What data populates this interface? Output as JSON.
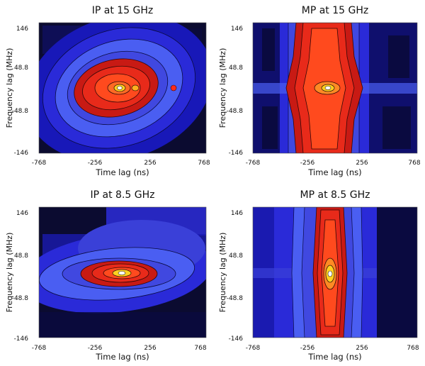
{
  "chart_data": [
    {
      "type": "heatmap",
      "title": "IP at 15 GHz",
      "xlabel": "Time lag (ns)",
      "ylabel": "Frequency lag (MHz)",
      "xlim": [
        -768,
        768
      ],
      "ylim": [
        -146,
        146
      ],
      "xticks": [
        "-768",
        "-256",
        "256",
        "768"
      ],
      "yticks": [
        "146",
        "48.8",
        "-48.8",
        "-146"
      ],
      "colormap": [
        "#0a0a2e",
        "#1a1ad0",
        "#4a5ef2",
        "#d61a10",
        "#ff4a1a",
        "#ffd020",
        "#ffffff"
      ],
      "peak": {
        "x": 0,
        "y": 0
      },
      "shape": "elliptical blob, tilted, broad in time lag"
    },
    {
      "type": "heatmap",
      "title": "MP at 15 GHz",
      "xlabel": "Time lag (ns)",
      "ylabel": "Frequency lag (MHz)",
      "xlim": [
        -768,
        768
      ],
      "ylim": [
        -146,
        146
      ],
      "xticks": [
        "-768",
        "-256",
        "256",
        "768"
      ],
      "yticks": [
        "146",
        "48.8",
        "-48.8",
        "-146"
      ],
      "colormap": [
        "#0a0a2e",
        "#1a1ad0",
        "#4a5ef2",
        "#d61a10",
        "#ff4a1a",
        "#ffd020",
        "#ffffff"
      ],
      "peak": {
        "x": 0,
        "y": 0
      },
      "shape": "vertical band narrow in time lag, extended in frequency lag"
    },
    {
      "type": "heatmap",
      "title": "IP at 8.5 GHz",
      "xlabel": "Time lag (ns)",
      "ylabel": "Frequency lag (MHz)",
      "xlim": [
        -768,
        768
      ],
      "ylim": [
        -146,
        146
      ],
      "xticks": [
        "-768",
        "-256",
        "256",
        "768"
      ],
      "yticks": [
        "146",
        "48.8",
        "-48.8",
        "-146"
      ],
      "colormap": [
        "#0a0a2e",
        "#1a1ad0",
        "#4a5ef2",
        "#d61a10",
        "#ff4a1a",
        "#ffd020",
        "#ffffff"
      ],
      "peak": {
        "x": 0,
        "y": 0
      },
      "shape": "horizontal elliptical blob, narrow in frequency lag"
    },
    {
      "type": "heatmap",
      "title": "MP at 8.5 GHz",
      "xlabel": "Time lag (ns)",
      "ylabel": "Frequency lag (MHz)",
      "xlim": [
        -768,
        768
      ],
      "ylim": [
        -146,
        146
      ],
      "xticks": [
        "-768",
        "-256",
        "256",
        "768"
      ],
      "yticks": [
        "146",
        "48.8",
        "-48.8",
        "-146"
      ],
      "colormap": [
        "#0a0a2e",
        "#1a1ad0",
        "#4a5ef2",
        "#d61a10",
        "#ff4a1a",
        "#ffd020",
        "#ffffff"
      ],
      "peak": {
        "x": 0,
        "y": 0
      },
      "shape": "narrow vertical spindle extended in frequency lag"
    }
  ]
}
